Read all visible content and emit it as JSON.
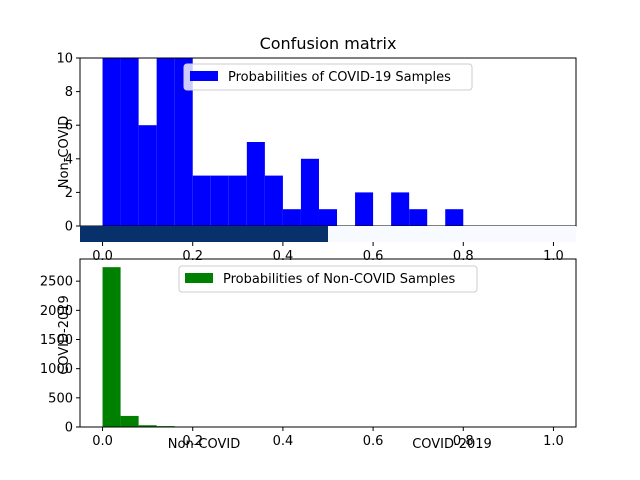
{
  "title": "Confusion matrix",
  "overlay": {
    "ylabel_top": "Non-COVID",
    "ylabel_bottom": "COVID-2019",
    "xticklabels": [
      "Non-COVID",
      "COVID-2019"
    ],
    "colors": {
      "left": "#08306b",
      "right": "#f7fbff"
    }
  },
  "chart_data": [
    {
      "type": "bar",
      "legend": "Probabilities of COVID-19 Samples",
      "color": "#0000ff",
      "bin_edges": [
        0.0,
        0.04,
        0.08,
        0.12,
        0.16,
        0.2,
        0.24,
        0.28,
        0.32,
        0.36,
        0.4,
        0.44,
        0.48,
        0.52,
        0.56,
        0.6,
        0.64,
        0.68,
        0.72,
        0.76,
        0.8,
        0.84,
        0.88,
        0.92,
        0.96,
        1.0
      ],
      "values": [
        10,
        10,
        6,
        10,
        10,
        3,
        3,
        3,
        5,
        3,
        1,
        4,
        1,
        0,
        2,
        0,
        2,
        1,
        0,
        1,
        0,
        0,
        0,
        0,
        0
      ],
      "xlim": [
        -0.05,
        1.05
      ],
      "ylim": [
        0,
        10
      ],
      "xticks": [
        0.0,
        0.2,
        0.4,
        0.6,
        0.8,
        1.0
      ],
      "yticks": [
        0,
        2,
        4,
        6,
        8,
        10
      ],
      "legend_position": "upper center"
    },
    {
      "type": "bar",
      "legend": "Probabilities of Non-COVID Samples",
      "color": "#008000",
      "bin_edges": [
        0.0,
        0.04,
        0.08,
        0.12,
        0.16,
        0.2,
        0.24,
        0.28,
        0.32,
        0.36,
        0.4,
        0.44,
        0.48,
        0.52,
        0.56,
        0.6,
        0.64,
        0.68,
        0.72,
        0.76,
        0.8,
        0.84,
        0.88,
        0.92,
        0.96,
        1.0
      ],
      "values": [
        2740,
        190,
        30,
        15,
        5,
        0,
        0,
        0,
        0,
        0,
        0,
        0,
        0,
        0,
        0,
        0,
        0,
        0,
        0,
        0,
        0,
        0,
        0,
        0,
        0
      ],
      "xlim": [
        -0.05,
        1.05
      ],
      "ylim": [
        0,
        2880
      ],
      "xticks": [
        0.0,
        0.2,
        0.4,
        0.6,
        0.8,
        1.0
      ],
      "yticks": [
        0,
        500,
        1000,
        1500,
        2000,
        2500
      ],
      "legend_position": "upper center"
    }
  ]
}
